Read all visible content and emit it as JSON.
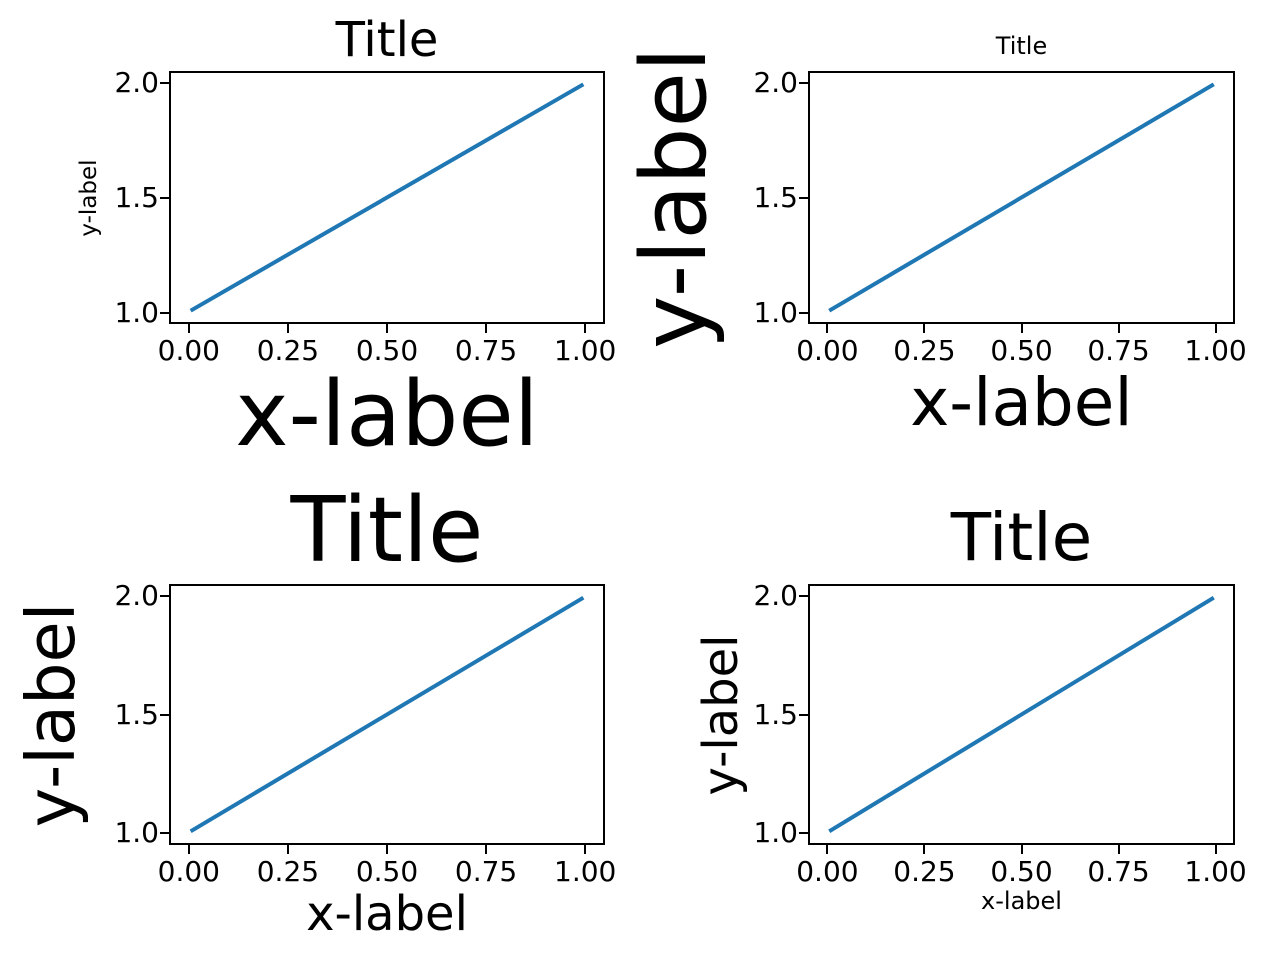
{
  "figure": {
    "background": "#ffffff",
    "axis_color": "#000000",
    "text_color": "#000000",
    "line_color": "#1f77b4"
  },
  "chart_data": [
    {
      "type": "line",
      "position": "top-left",
      "title": "Title",
      "xlabel": "x-label",
      "ylabel": "y-label",
      "series": [
        {
          "x": [
            0,
            1
          ],
          "y": [
            1,
            2
          ],
          "color": "#1f77b4"
        }
      ],
      "xlim": [
        -0.05,
        1.05
      ],
      "ylim": [
        0.95,
        2.05
      ],
      "xticks": [
        0.0,
        0.25,
        0.5,
        0.75,
        1.0
      ],
      "xtick_labels": [
        "0.00",
        "0.25",
        "0.50",
        "0.75",
        "1.00"
      ],
      "yticks": [
        1.0,
        1.5,
        2.0
      ],
      "ytick_labels": [
        "1.0",
        "1.5",
        "2.0"
      ],
      "grid": false,
      "legend": null,
      "font_sizes": {
        "title": 48,
        "xlabel": 90,
        "ylabel": 23,
        "ticks": 28
      }
    },
    {
      "type": "line",
      "position": "top-right",
      "title": "Title",
      "xlabel": "x-label",
      "ylabel": "y-label",
      "series": [
        {
          "x": [
            0,
            1
          ],
          "y": [
            1,
            2
          ],
          "color": "#1f77b4"
        }
      ],
      "xlim": [
        -0.05,
        1.05
      ],
      "ylim": [
        0.95,
        2.05
      ],
      "xticks": [
        0.0,
        0.25,
        0.5,
        0.75,
        1.0
      ],
      "xtick_labels": [
        "0.00",
        "0.25",
        "0.50",
        "0.75",
        "1.00"
      ],
      "yticks": [
        1.0,
        1.5,
        2.0
      ],
      "ytick_labels": [
        "1.0",
        "1.5",
        "2.0"
      ],
      "grid": false,
      "legend": null,
      "font_sizes": {
        "title": 24,
        "xlabel": 66,
        "ylabel": 90,
        "ticks": 28
      }
    },
    {
      "type": "line",
      "position": "bottom-left",
      "title": "Title",
      "xlabel": "x-label",
      "ylabel": "y-label",
      "series": [
        {
          "x": [
            0,
            1
          ],
          "y": [
            1,
            2
          ],
          "color": "#1f77b4"
        }
      ],
      "xlim": [
        -0.05,
        1.05
      ],
      "ylim": [
        0.95,
        2.05
      ],
      "xticks": [
        0.0,
        0.25,
        0.5,
        0.75,
        1.0
      ],
      "xtick_labels": [
        "0.00",
        "0.25",
        "0.50",
        "0.75",
        "1.00"
      ],
      "yticks": [
        1.0,
        1.5,
        2.0
      ],
      "ytick_labels": [
        "1.0",
        "1.5",
        "2.0"
      ],
      "grid": false,
      "legend": null,
      "font_sizes": {
        "title": 90,
        "xlabel": 48,
        "ylabel": 67,
        "ticks": 28
      }
    },
    {
      "type": "line",
      "position": "bottom-right",
      "title": "Title",
      "xlabel": "x-label",
      "ylabel": "y-label",
      "series": [
        {
          "x": [
            0,
            1
          ],
          "y": [
            1,
            2
          ],
          "color": "#1f77b4"
        }
      ],
      "xlim": [
        -0.05,
        1.05
      ],
      "ylim": [
        0.95,
        2.05
      ],
      "xticks": [
        0.0,
        0.25,
        0.5,
        0.75,
        1.0
      ],
      "xtick_labels": [
        "0.00",
        "0.25",
        "0.50",
        "0.75",
        "1.00"
      ],
      "yticks": [
        1.0,
        1.5,
        2.0
      ],
      "ytick_labels": [
        "1.0",
        "1.5",
        "2.0"
      ],
      "grid": false,
      "legend": null,
      "font_sizes": {
        "title": 66,
        "xlabel": 24,
        "ylabel": 48,
        "ticks": 28
      }
    }
  ]
}
